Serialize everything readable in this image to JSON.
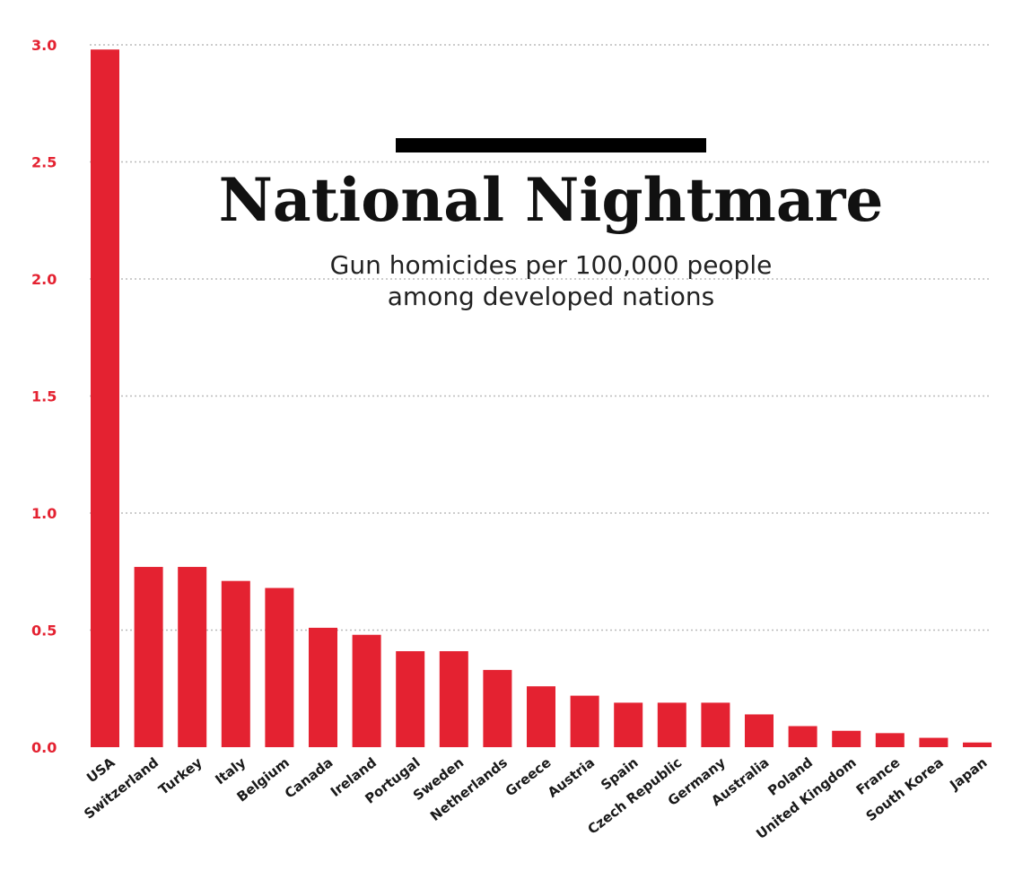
{
  "chart_data": {
    "type": "bar",
    "title": "National Nightmare",
    "subtitle_lines": [
      "Gun homicides per 100,000 people",
      "among developed nations"
    ],
    "xlabel": "",
    "ylabel": "",
    "ylim": [
      0,
      3.0
    ],
    "yticks": [
      "0.0",
      "0.5",
      "1.0",
      "1.5",
      "2.0",
      "2.5",
      "3.0"
    ],
    "grid": true,
    "categories": [
      "USA",
      "Switzerland",
      "Turkey",
      "Italy",
      "Belgium",
      "Canada",
      "Ireland",
      "Portugal",
      "Sweden",
      "Netherlands",
      "Greece",
      "Austria",
      "Spain",
      "Czech Republic",
      "Germany",
      "Australia",
      "Poland",
      "United Kingdom",
      "France",
      "South Korea",
      "Japan"
    ],
    "values": [
      2.98,
      0.77,
      0.77,
      0.71,
      0.68,
      0.51,
      0.48,
      0.41,
      0.41,
      0.33,
      0.26,
      0.22,
      0.19,
      0.19,
      0.19,
      0.14,
      0.09,
      0.07,
      0.06,
      0.04,
      0.02
    ],
    "colors": {
      "bar": "#e42231",
      "ytick": "#e42231",
      "grid": "#bbbbbb",
      "title_rule": "#000000"
    }
  }
}
